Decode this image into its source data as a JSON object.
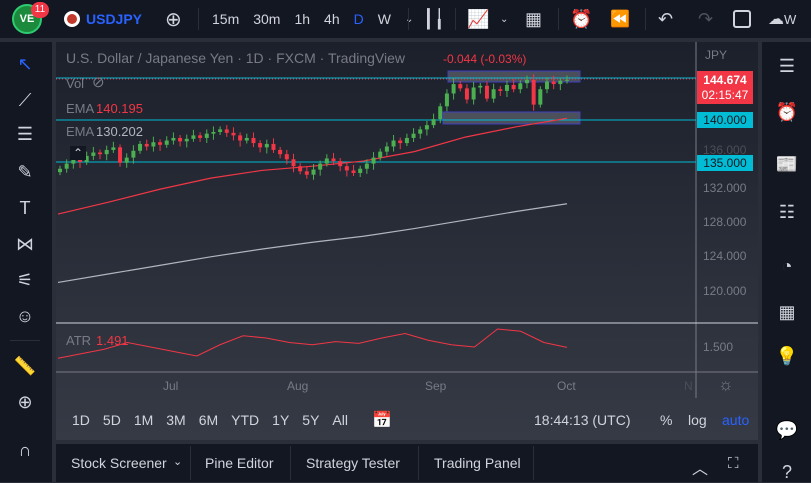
{
  "topbar": {
    "notification_count": "11",
    "symbol": "USDJPY",
    "intervals": [
      "15m",
      "30m",
      "1h",
      "4h",
      "D",
      "W"
    ],
    "active_interval": "D",
    "cut_text": "W"
  },
  "legend": {
    "title": "U.S. Dollar / Japanese Yen · 1D · FXCM · TradingView",
    "change": "-0.044 (-0.03%)",
    "vol": "Vol",
    "ema1_label": "EMA",
    "ema1_value": "140.195",
    "ema2_label": "EMA",
    "ema2_value": "130.202"
  },
  "price_axis": {
    "currency": "JPY",
    "last_price": "144.674",
    "countdown": "02:15:47",
    "level1": "140.000",
    "level2": "135.000",
    "ticks": [
      "136.000",
      "132.000",
      "128.000",
      "124.000",
      "120.000"
    ],
    "atr_tick": "1.500"
  },
  "time_axis": [
    "Jul",
    "Aug",
    "Sep",
    "Oct",
    "N"
  ],
  "atr": {
    "label": "ATR",
    "value": "1.491"
  },
  "ranges": [
    "1D",
    "5D",
    "1M",
    "3M",
    "6M",
    "YTD",
    "1Y",
    "5Y",
    "All"
  ],
  "clock": "18:44:13 (UTC)",
  "scale_opts": {
    "percent": "%",
    "log": "log",
    "auto": "auto"
  },
  "bottom_tabs": [
    "Stock Screener",
    "Pine Editor",
    "Strategy Tester",
    "Trading Panel"
  ],
  "colors": {
    "up": "#26a69a",
    "down": "#f23645",
    "green_candle": "#4caf50",
    "accent": "#2962ff",
    "level": "#00bcd4",
    "ema50": "#f23645",
    "ema200": "#b2b5be"
  },
  "chart_data": {
    "type": "candlestick",
    "closes": [
      134.3,
      134.9,
      135.4,
      135.1,
      135.8,
      136.2,
      136.0,
      136.5,
      136.8,
      135.0,
      135.6,
      136.4,
      137.2,
      136.9,
      137.4,
      137.1,
      137.6,
      137.9,
      137.5,
      137.8,
      138.2,
      137.9,
      138.4,
      138.6,
      138.9,
      138.5,
      138.2,
      137.6,
      137.9,
      137.3,
      136.8,
      137.2,
      136.5,
      136.0,
      135.4,
      134.6,
      134.0,
      133.6,
      134.2,
      134.9,
      135.5,
      135.2,
      134.6,
      134.1,
      133.8,
      134.3,
      134.9,
      135.6,
      136.3,
      136.9,
      137.6,
      137.3,
      137.9,
      138.4,
      138.9,
      139.4,
      140.1,
      141.6,
      143.1,
      144.2,
      143.7,
      142.4,
      143.8,
      144.0,
      142.5,
      143.6,
      143.4,
      144.1,
      143.6,
      144.3,
      144.7,
      141.8,
      143.6,
      144.5,
      144.2,
      144.6,
      144.7
    ],
    "ema50": [
      129.0,
      130.4,
      131.9,
      133.2,
      134.1,
      134.6,
      135.2,
      136.3,
      138.0,
      139.2,
      140.195
    ],
    "ema200": [
      121.0,
      122.0,
      123.0,
      124.0,
      124.9,
      125.7,
      126.4,
      127.3,
      128.3,
      129.3,
      130.202
    ],
    "atr": [
      1.25,
      1.35,
      1.45,
      1.6,
      1.5,
      1.4,
      1.3,
      1.55,
      1.75,
      1.7,
      1.6,
      1.55,
      1.62,
      1.58,
      1.7,
      1.8,
      1.65,
      1.55,
      1.5,
      1.9,
      1.85,
      1.6,
      1.491
    ]
  }
}
